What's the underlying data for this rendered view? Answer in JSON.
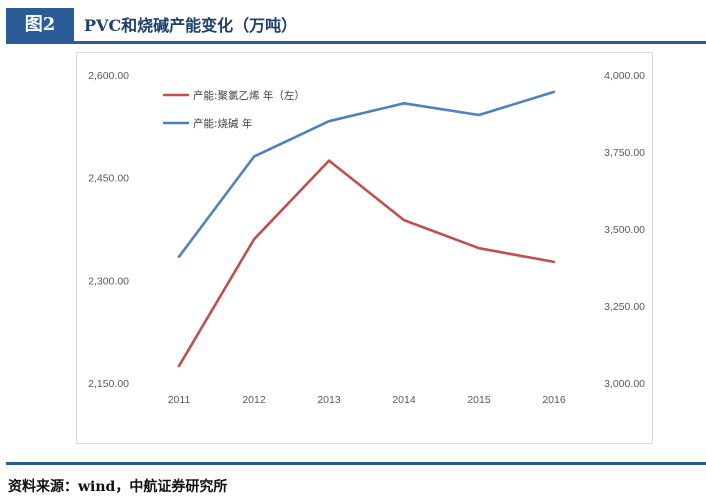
{
  "header": {
    "badge": "图2",
    "title": "PVC和烧碱产能变化（万吨）"
  },
  "footer": {
    "source": "资料来源：wind，中航证券研究所"
  },
  "chart_data": {
    "type": "line",
    "categories": [
      "2011",
      "2012",
      "2013",
      "2014",
      "2015",
      "2016"
    ],
    "series": [
      {
        "name": "产能:聚氯乙烯 年（左）",
        "axis": "left",
        "color": "#c0504d",
        "values": [
          2175,
          2360,
          2475,
          2388,
          2347,
          2327
        ]
      },
      {
        "name": "产能:烧碱 年",
        "axis": "right",
        "color": "#4f81bd",
        "values": [
          3410,
          3735,
          3850,
          3908,
          3870,
          3945
        ]
      }
    ],
    "y_left": {
      "min": 2150,
      "max": 2600,
      "ticks": [
        "2,600.00",
        "2,450.00",
        "2,300.00",
        "2,150.00"
      ]
    },
    "y_right": {
      "min": 3000,
      "max": 4000,
      "ticks": [
        "4,000.00",
        "3,750.00",
        "3,500.00",
        "3,250.00",
        "3,000.00"
      ]
    },
    "legend_position": "top-left",
    "grid": false
  }
}
